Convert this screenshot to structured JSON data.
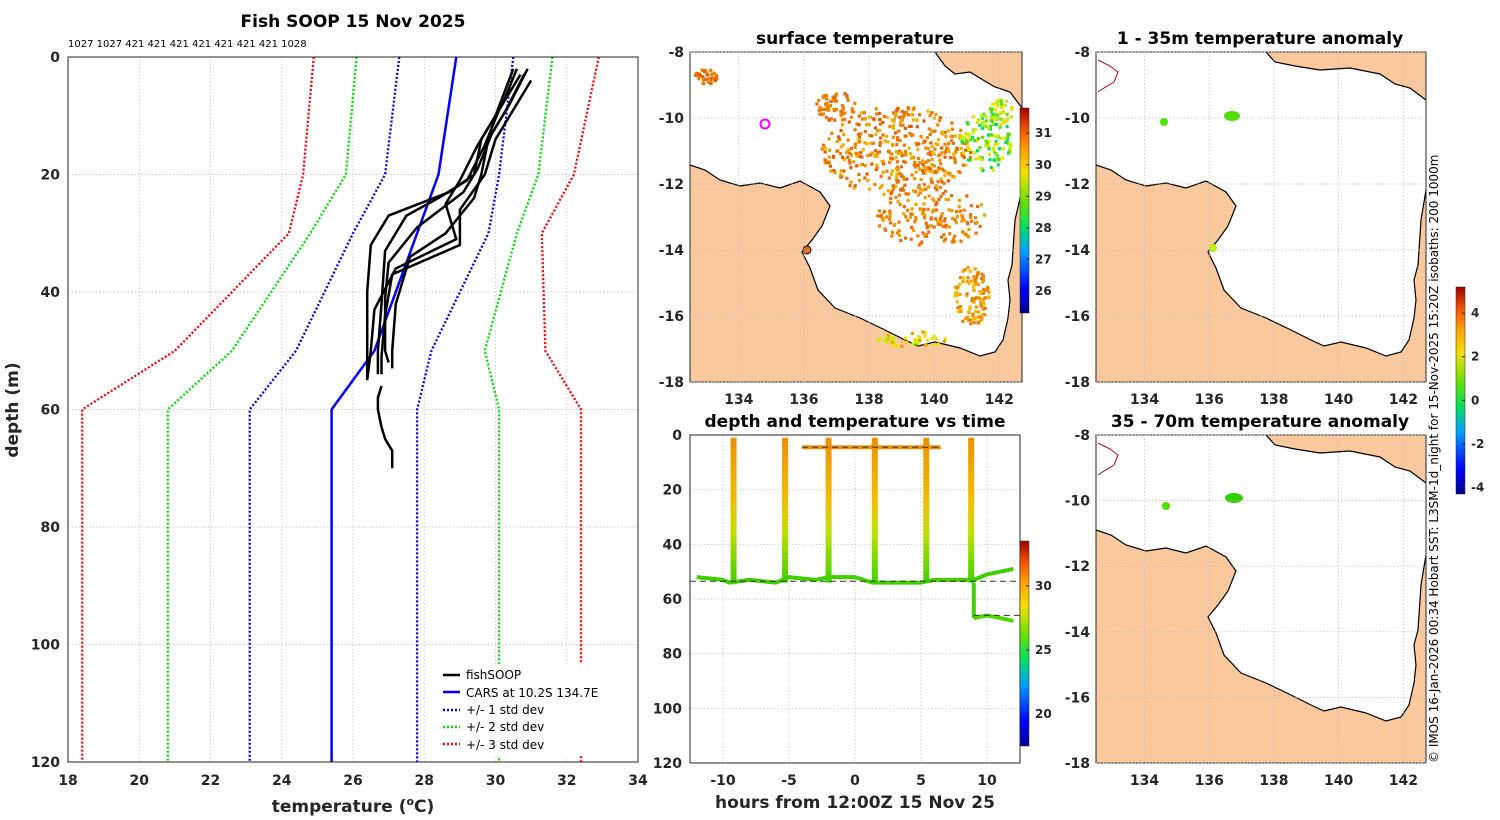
{
  "chart_data": [
    {
      "id": "profile",
      "type": "line",
      "title": "Fish SOOP 15 Nov 2025",
      "top_annotation": "1027 1027 421 421 421 421 421 421 421 1028",
      "xlabel": "temperature (",
      "xlabel_sup": "o",
      "xlabel_end": "C)",
      "ylabel": "depth (m)",
      "xlim": [
        18,
        34
      ],
      "ylim": [
        120,
        0
      ],
      "xticks": [
        "18",
        "20",
        "22",
        "24",
        "26",
        "28",
        "30",
        "32",
        "34"
      ],
      "yticks": [
        "0",
        "20",
        "40",
        "60",
        "80",
        "100",
        "120"
      ],
      "legend": [
        {
          "label": "fishSOOP",
          "color": "#000000",
          "style": "solid"
        },
        {
          "label": "CARS at 10.2S 134.7E",
          "color": "#0000ff",
          "style": "solid"
        },
        {
          "label": "+/- 1 std dev",
          "color": "#0000ff",
          "style": "dotted"
        },
        {
          "label": "+/- 2 std dev",
          "color": "#00e000",
          "style": "dotted"
        },
        {
          "label": "+/- 3 std dev",
          "color": "#ff0000",
          "style": "dotted"
        }
      ],
      "series": [
        {
          "name": "CARS mean",
          "color": "#0000ff",
          "style": "solid",
          "x": [
            28.9,
            28.4,
            27.8,
            26.6,
            25.4,
            25.4
          ],
          "y": [
            0,
            20,
            30,
            50,
            60,
            120
          ]
        },
        {
          "name": "-1 std",
          "color": "#0000ff",
          "style": "dotted",
          "x": [
            27.3,
            26.9,
            26.0,
            24.4,
            23.1,
            23.1
          ],
          "y": [
            0,
            20,
            30,
            50,
            60,
            120
          ]
        },
        {
          "name": "+1 std",
          "color": "#0000ff",
          "style": "dotted",
          "x": [
            30.5,
            30.1,
            29.8,
            28.2,
            27.8,
            27.8
          ],
          "y": [
            0,
            20,
            30,
            50,
            60,
            120
          ]
        },
        {
          "name": "-2 std",
          "color": "#00e000",
          "style": "dotted",
          "x": [
            26.1,
            25.8,
            24.8,
            22.6,
            20.8,
            20.8
          ],
          "y": [
            0,
            20,
            30,
            50,
            60,
            120
          ]
        },
        {
          "name": "+2 std",
          "color": "#00e000",
          "style": "dotted",
          "x": [
            31.6,
            31.2,
            30.6,
            29.7,
            30.1,
            30.1
          ],
          "y": [
            0,
            20,
            30,
            50,
            60,
            120
          ]
        },
        {
          "name": "-3 std",
          "color": "#ff0000",
          "style": "dotted",
          "x": [
            24.9,
            24.6,
            24.2,
            21.0,
            18.4,
            18.4
          ],
          "y": [
            0,
            20,
            30,
            50,
            60,
            120
          ]
        },
        {
          "name": "+3 std",
          "color": "#ff0000",
          "style": "dotted",
          "x": [
            32.9,
            32.2,
            31.3,
            31.4,
            32.4,
            32.4
          ],
          "y": [
            0,
            20,
            30,
            50,
            60,
            120
          ]
        },
        {
          "name": "fishSOOP A",
          "color": "#000000",
          "style": "solid",
          "x": [
            30.6,
            30.2,
            29.6,
            29.4,
            28.7,
            27.0,
            26.5,
            26.4,
            26.4,
            26.4
          ],
          "y": [
            2,
            8,
            14,
            20,
            23,
            27,
            32,
            40,
            50,
            55
          ]
        },
        {
          "name": "fishSOOP B",
          "color": "#000000",
          "style": "solid",
          "x": [
            30.7,
            30.1,
            29.7,
            29.2,
            28.4,
            27.5,
            26.9,
            26.8,
            26.7,
            26.7
          ],
          "y": [
            3,
            9,
            15,
            21,
            24,
            27,
            33,
            42,
            50,
            54
          ]
        },
        {
          "name": "fishSOOP C",
          "color": "#000000",
          "style": "solid",
          "x": [
            30.9,
            30.4,
            29.9,
            29.5,
            29.1,
            27.8,
            27.0,
            26.9,
            26.9,
            27.0
          ],
          "y": [
            2,
            8,
            13,
            19,
            23,
            29,
            35,
            41,
            50,
            52
          ]
        },
        {
          "name": "fishSOOP D",
          "color": "#000000",
          "style": "solid",
          "x": [
            30.8,
            30.3,
            29.8,
            29.6,
            29.4,
            28.6,
            27.6,
            27.2,
            27.1,
            27.1
          ],
          "y": [
            3,
            9,
            14,
            20,
            24,
            30,
            34,
            42,
            50,
            53
          ]
        },
        {
          "name": "fishSOOP E",
          "color": "#000000",
          "style": "solid",
          "x": [
            30.5,
            30.0,
            29.5,
            29.0,
            28.6,
            28.9,
            27.2,
            26.6,
            26.5,
            26.4
          ],
          "y": [
            2,
            10,
            15,
            21,
            25,
            31,
            36,
            43,
            50,
            55
          ]
        },
        {
          "name": "fishSOOP F",
          "color": "#000000",
          "style": "solid",
          "x": [
            31.0,
            30.5,
            30.0,
            29.7,
            29.0,
            29.0,
            27.1,
            26.9,
            26.8,
            26.8
          ],
          "y": [
            4,
            9,
            14,
            20,
            26,
            32,
            37,
            44,
            51,
            54
          ]
        },
        {
          "name": "fishSOOP deep",
          "color": "#000000",
          "style": "solid",
          "x": [
            26.8,
            26.7,
            26.7,
            26.8,
            26.9,
            27.0,
            27.1,
            27.1
          ],
          "y": [
            56,
            58,
            60,
            63,
            65,
            66,
            67,
            70
          ]
        }
      ]
    },
    {
      "id": "sst_map",
      "type": "heatmap",
      "title": "surface temperature",
      "xticks": [
        "134",
        "136",
        "138",
        "140",
        "142"
      ],
      "yticks": [
        "-8",
        "-10",
        "-12",
        "-14",
        "-16",
        "-18"
      ],
      "xlim": [
        132.5,
        142.7
      ],
      "ylim": [
        -18,
        -8
      ],
      "colorbar_ticks": [
        "26",
        "27",
        "28",
        "29",
        "30",
        "31"
      ],
      "colorbar_range": [
        25.3,
        31.8
      ]
    },
    {
      "id": "depth_time",
      "type": "scatter",
      "title": "depth and temperature vs time",
      "xlabel": "hours from 12:00Z 15 Nov 25",
      "xlim": [
        -12.5,
        12.5
      ],
      "ylim": [
        120,
        0
      ],
      "xticks": [
        "-10",
        "-5",
        "0",
        "5",
        "10"
      ],
      "yticks": [
        "0",
        "20",
        "40",
        "60",
        "80",
        "100",
        "120"
      ],
      "colorbar_ticks": [
        "20",
        "25",
        "30"
      ],
      "colorbar_range": [
        17.5,
        33.5
      ],
      "dashed_lines": [
        {
          "x": [
            -4,
            6.5
          ],
          "y": [
            4.5,
            4.5
          ]
        },
        {
          "x": [
            -12.5,
            12.5
          ],
          "y": [
            53.5,
            53.5
          ]
        },
        {
          "x": [
            9,
            12.5
          ],
          "y": [
            66,
            66
          ]
        }
      ],
      "casts_hours": [
        -9.2,
        -5.3,
        -2.0,
        1.5,
        5.4,
        8.8
      ],
      "bottom_track": {
        "x": [
          -12,
          -10,
          -9.5,
          -8,
          -6,
          -5,
          -3,
          -2,
          0,
          1.3,
          3,
          5,
          6,
          8,
          9,
          10,
          11,
          12
        ],
        "y": [
          52,
          53,
          54,
          53,
          54,
          52,
          53,
          52,
          52,
          54,
          54,
          54,
          53,
          53,
          53,
          51,
          50,
          49
        ]
      },
      "deep_track": {
        "x": [
          9,
          10,
          11,
          12
        ],
        "y": [
          67,
          66,
          67,
          68
        ]
      }
    },
    {
      "id": "anom_shallow",
      "type": "heatmap",
      "title": "1 - 35m temperature anomaly",
      "xticks": [
        "134",
        "136",
        "138",
        "140",
        "142"
      ],
      "yticks": [
        "-8",
        "-10",
        "-12",
        "-14",
        "-16",
        "-18"
      ],
      "xlim": [
        132.5,
        142.7
      ],
      "ylim": [
        -18,
        -8
      ]
    },
    {
      "id": "anom_deep",
      "type": "heatmap",
      "title": "35 - 70m temperature anomaly",
      "xticks": [
        "134",
        "136",
        "138",
        "140",
        "142"
      ],
      "yticks": [
        "-8",
        "-10",
        "-12",
        "-14",
        "-16",
        "-18"
      ],
      "xlim": [
        132.5,
        142.7
      ],
      "ylim": [
        -18,
        -8
      ],
      "colorbar_ticks": [
        "-4",
        "-2",
        "0",
        "2",
        "4"
      ],
      "colorbar_range": [
        -4.3,
        5.2
      ]
    }
  ],
  "credit": "© IMOS 16-Jan-2026 00:34 Hobart SST: L3SM-1d_night for 15-Nov-2025 15:20Z isobaths: 200  1000m"
}
